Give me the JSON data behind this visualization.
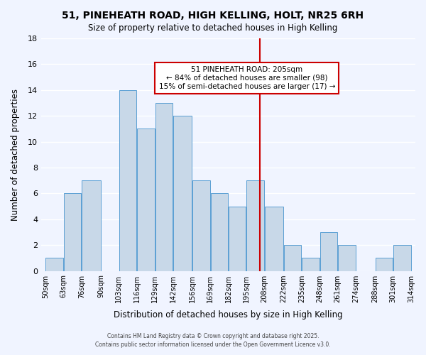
{
  "title": "51, PINEHEATH ROAD, HIGH KELLING, HOLT, NR25 6RH",
  "subtitle": "Size of property relative to detached houses in High Kelling",
  "xlabel": "Distribution of detached houses by size in High Kelling",
  "ylabel": "Number of detached properties",
  "bar_color": "#c8d8e8",
  "bar_edge_color": "#5a9fd4",
  "background_color": "#f0f4ff",
  "grid_color": "#ffffff",
  "bins": [
    50,
    63,
    76,
    90,
    103,
    116,
    129,
    142,
    156,
    169,
    182,
    195,
    208,
    222,
    235,
    248,
    261,
    274,
    288,
    301,
    314
  ],
  "counts": [
    1,
    6,
    7,
    0,
    14,
    11,
    13,
    12,
    7,
    6,
    5,
    7,
    5,
    2,
    1,
    3,
    2,
    0,
    1,
    2
  ],
  "tick_labels": [
    "50sqm",
    "63sqm",
    "76sqm",
    "90sqm",
    "103sqm",
    "116sqm",
    "129sqm",
    "142sqm",
    "156sqm",
    "169sqm",
    "182sqm",
    "195sqm",
    "208sqm",
    "222sqm",
    "235sqm",
    "248sqm",
    "261sqm",
    "274sqm",
    "288sqm",
    "301sqm",
    "314sqm"
  ],
  "vline_x": 205,
  "vline_color": "#cc0000",
  "annotation_title": "51 PINEHEATH ROAD: 205sqm",
  "annotation_line1": "← 84% of detached houses are smaller (98)",
  "annotation_line2": "15% of semi-detached houses are larger (17) →",
  "annotation_box_color": "#ffffff",
  "annotation_box_edge": "#cc0000",
  "footer1": "Contains HM Land Registry data © Crown copyright and database right 2025.",
  "footer2": "Contains public sector information licensed under the Open Government Licence v3.0.",
  "ylim": [
    0,
    18
  ],
  "yticks": [
    0,
    2,
    4,
    6,
    8,
    10,
    12,
    14,
    16,
    18
  ]
}
